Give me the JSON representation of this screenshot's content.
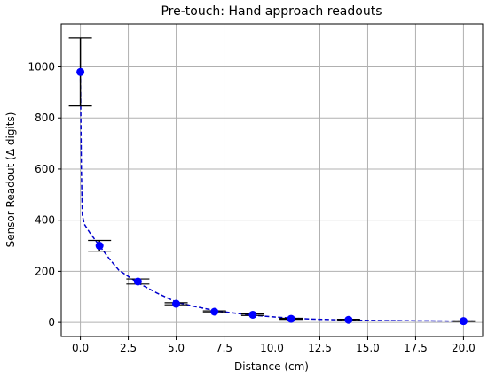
{
  "chart_data": {
    "type": "errorbar",
    "title": "Pre-touch: Hand approach readouts",
    "xlabel": "Distance (cm)",
    "ylabel": "Sensor Readout (Δ digits)",
    "xlim": [
      -1,
      21
    ],
    "ylim": [
      -55,
      1168
    ],
    "xticks": [
      {
        "value": 0,
        "label": "0.0"
      },
      {
        "value": 2.5,
        "label": "2.5"
      },
      {
        "value": 5,
        "label": "5.0"
      },
      {
        "value": 7.5,
        "label": "7.5"
      },
      {
        "value": 10,
        "label": "10.0"
      },
      {
        "value": 12.5,
        "label": "12.5"
      },
      {
        "value": 15,
        "label": "15.0"
      },
      {
        "value": 17.5,
        "label": "17.5"
      },
      {
        "value": 20,
        "label": "20.0"
      }
    ],
    "yticks": [
      0,
      200,
      400,
      600,
      800,
      1000
    ],
    "grid": true,
    "series": [
      {
        "x": [
          0,
          1,
          3,
          5,
          7,
          9,
          11,
          14,
          20
        ],
        "values": [
          980,
          300,
          160,
          73,
          42,
          30,
          14,
          10,
          5
        ],
        "errors": [
          133,
          21,
          10,
          4,
          3,
          3,
          2,
          2,
          1
        ],
        "color": "#0000ff",
        "ecolor": "#000000"
      },
      {
        "x": [
          0,
          0.05,
          0.1,
          0.2,
          0.5,
          1,
          1.5,
          2,
          3,
          4,
          5,
          6,
          7,
          8,
          9,
          10,
          11,
          12,
          14,
          16,
          18,
          20,
          20.5
        ],
        "values": [
          980,
          600,
          420,
          385,
          350,
          300,
          250,
          205,
          155,
          115,
          80,
          62,
          47,
          37,
          28,
          22,
          17,
          13,
          9,
          7,
          6,
          5,
          5
        ],
        "color": "#0000cc",
        "dashed": true
      }
    ]
  }
}
